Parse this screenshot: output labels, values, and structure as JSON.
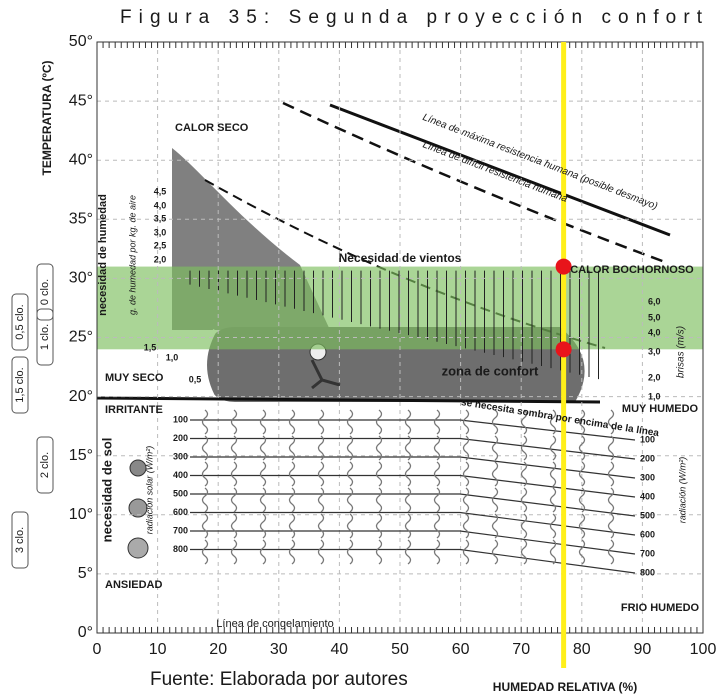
{
  "caption": "Figura 35: Segunda proyección confort",
  "source": "Fuente: Elaborada por autores",
  "chart_data": {
    "type": "bioclimatic",
    "xlabel": "HUMEDAD RELATIVA (%)",
    "ylabel": "TEMPERATURA (ºC)",
    "xlim": [
      0,
      100
    ],
    "ylim": [
      0,
      50
    ],
    "xticks": [
      0,
      10,
      20,
      30,
      40,
      50,
      60,
      70,
      80,
      90,
      100
    ],
    "yticks": [
      {
        "value": 0,
        "label": "0°"
      },
      {
        "value": 5,
        "label": "5°"
      },
      {
        "value": 10,
        "label": "10°"
      },
      {
        "value": 15,
        "label": "15°"
      },
      {
        "value": 20,
        "label": "20°"
      },
      {
        "value": 25,
        "label": "25°"
      },
      {
        "value": 30,
        "label": "30°"
      },
      {
        "value": 35,
        "label": "35°"
      },
      {
        "value": 40,
        "label": "40°"
      },
      {
        "value": 45,
        "label": "45°"
      },
      {
        "value": 50,
        "label": "50°"
      }
    ],
    "grid": true,
    "band": {
      "ymin": 24,
      "ymax": 31,
      "color": "#7dbf5e"
    },
    "marker_line": {
      "x": 77,
      "color": "#ffef1a"
    },
    "points": {
      "x": [
        77,
        77
      ],
      "y": [
        31,
        24
      ],
      "color": "#e8141b"
    },
    "annotations": [
      "CALOR SECO",
      "Línea de máxima resistencia humana (posible desmayo)",
      "Línea de difícil resistencia humana",
      "Necesidad de vientos",
      "CALOR BOCHORNOSO",
      "zona de confort",
      "MUY SECO",
      "MUY HUMEDO",
      "IRRITANTE",
      "se necesita sombra por encima de la línea",
      "ANSIEDAD",
      "FRIO HUMEDO",
      "Línea de congelamiento",
      "necesidad de humedad",
      "g. de humedad por kg. de aire",
      "brisas (m/s)",
      "necesidad de sol",
      "radiación solar (W/m²)",
      "radiación (W/m²)"
    ],
    "clothing_labels": [
      "0,5 clo.",
      "0 clo.",
      "1 clo.",
      "1,5 clo.",
      "2 clo.",
      "3 clo."
    ],
    "humidity_labels": [
      "4,5",
      "4,0",
      "3,5",
      "3,0",
      "2,5",
      "2,0",
      "1,5",
      "1,0",
      "0,5"
    ],
    "breeze_labels": [
      "6,0",
      "5,0",
      "4,0",
      "3,0",
      "2,0",
      "1,0"
    ],
    "radiation_left": [
      100,
      200,
      300,
      400,
      500,
      600,
      700,
      800
    ],
    "radiation_right": [
      100,
      200,
      300,
      400,
      500,
      600,
      700,
      800
    ]
  }
}
